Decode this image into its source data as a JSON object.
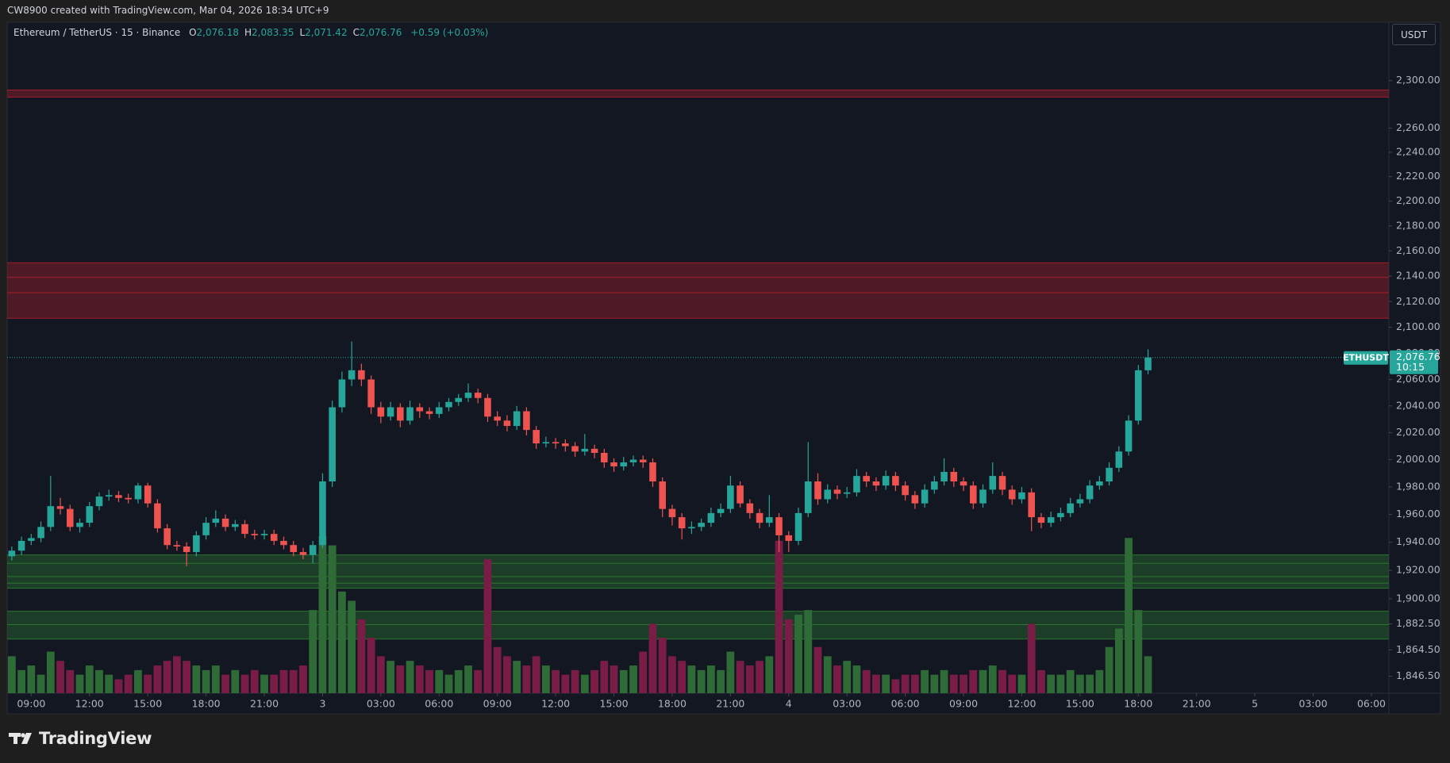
{
  "header": {
    "credit": "CW8900 created with TradingView.com, Mar 04, 2026 18:34 UTC+9"
  },
  "legend": {
    "symbol": "Ethereum / TetherUS · 15 · Binance",
    "ohlc": [
      {
        "key": "O",
        "value": "2,076.18"
      },
      {
        "key": "H",
        "value": "2,083.35"
      },
      {
        "key": "L",
        "value": "2,071.42"
      },
      {
        "key": "C",
        "value": "2,076.76"
      }
    ],
    "change": "+0.59 (+0.03%)"
  },
  "currency_button": "USDT",
  "footer": {
    "brand": "TradingView"
  },
  "chart_data": {
    "type": "candlestick",
    "log": true,
    "grid": false,
    "up_color": "#26a69a",
    "down_color": "#ef5350",
    "volume_up_color": "#2f6b36",
    "volume_down_color": "#7a1d46",
    "xlim": [
      7.76,
      78.9
    ],
    "xticks": [
      {
        "value": 9,
        "label": "09:00"
      },
      {
        "value": 12,
        "label": "12:00"
      },
      {
        "value": 15,
        "label": "15:00"
      },
      {
        "value": 18,
        "label": "18:00"
      },
      {
        "value": 21,
        "label": "21:00"
      },
      {
        "value": 24,
        "label": "3"
      },
      {
        "value": 27,
        "label": "03:00"
      },
      {
        "value": 30,
        "label": "06:00"
      },
      {
        "value": 33,
        "label": "09:00"
      },
      {
        "value": 36,
        "label": "12:00"
      },
      {
        "value": 39,
        "label": "15:00"
      },
      {
        "value": 42,
        "label": "18:00"
      },
      {
        "value": 45,
        "label": "21:00"
      },
      {
        "value": 48,
        "label": "4"
      },
      {
        "value": 51,
        "label": "03:00"
      },
      {
        "value": 54,
        "label": "06:00"
      },
      {
        "value": 57,
        "label": "09:00"
      },
      {
        "value": 60,
        "label": "12:00"
      },
      {
        "value": 63,
        "label": "15:00"
      },
      {
        "value": 66,
        "label": "18:00"
      },
      {
        "value": 69,
        "label": "21:00"
      },
      {
        "value": 72,
        "label": "5"
      },
      {
        "value": 75,
        "label": "03:00"
      },
      {
        "value": 78,
        "label": "06:00"
      }
    ],
    "ylim": [
      1835,
      2350
    ],
    "yticks": [
      {
        "value": 2300,
        "label": "2,300.00"
      },
      {
        "value": 2260,
        "label": "2,260.00"
      },
      {
        "value": 2240,
        "label": "2,240.00"
      },
      {
        "value": 2220,
        "label": "2,220.00"
      },
      {
        "value": 2200,
        "label": "2,200.00"
      },
      {
        "value": 2180,
        "label": "2,180.00"
      },
      {
        "value": 2160,
        "label": "2,160.00"
      },
      {
        "value": 2140,
        "label": "2,140.00"
      },
      {
        "value": 2120,
        "label": "2,120.00"
      },
      {
        "value": 2100,
        "label": "2,100.00"
      },
      {
        "value": 2080,
        "label": "2,080.00"
      },
      {
        "value": 2060,
        "label": "2,060.00"
      },
      {
        "value": 2040,
        "label": "2,040.00"
      },
      {
        "value": 2020,
        "label": "2,020.00"
      },
      {
        "value": 2000,
        "label": "2,000.00"
      },
      {
        "value": 1980,
        "label": "1,980.00"
      },
      {
        "value": 1960,
        "label": "1,960.00"
      },
      {
        "value": 1940,
        "label": "1,940.00"
      },
      {
        "value": 1920,
        "label": "1,920.00"
      },
      {
        "value": 1900,
        "label": "1,900.00"
      },
      {
        "value": 1882.5,
        "label": "1,882.50"
      },
      {
        "value": 1864.5,
        "label": "1,864.50"
      },
      {
        "value": 1846.5,
        "label": "1,846.50"
      }
    ],
    "zones": [
      {
        "from": 2286,
        "to": 2292,
        "color": "#b0202c",
        "lines": [
          2286,
          2292
        ]
      },
      {
        "from": 2107,
        "to": 2150.6,
        "color": "#b0202c",
        "lines": [
          2150.6,
          2139,
          2127,
          2107
        ]
      },
      {
        "from": 1907.4,
        "to": 1931,
        "color": "#2e7d32",
        "lines": [
          1931,
          1925,
          1915.6,
          1911,
          1907.4
        ]
      },
      {
        "from": 1872,
        "to": 1891.3,
        "color": "#2e7d32",
        "lines": [
          1891.3,
          1882,
          1872
        ]
      }
    ],
    "last_price": {
      "value": 2076.76,
      "label": "2,076.76",
      "symbol": "ETHUSDT",
      "countdown": "10:15"
    },
    "x": [
      8,
      8.5,
      9,
      9.5,
      10,
      10.5,
      11,
      11.5,
      12,
      12.5,
      13,
      13.5,
      14,
      14.5,
      15,
      15.5,
      16,
      16.5,
      17,
      17.5,
      18,
      18.5,
      19,
      19.5,
      20,
      20.5,
      21,
      21.5,
      22,
      22.5,
      23,
      23.5,
      24,
      24.5,
      25,
      25.5,
      26,
      26.5,
      27,
      27.5,
      28,
      28.5,
      29,
      29.5,
      30,
      30.5,
      31,
      31.5,
      32,
      32.5,
      33,
      33.5,
      34,
      34.5,
      35,
      35.5,
      36,
      36.5,
      37,
      37.5,
      38,
      38.5,
      39,
      39.5,
      40,
      40.5,
      41,
      41.5,
      42,
      42.5,
      43,
      43.5,
      44,
      44.5,
      45,
      45.5,
      46,
      46.5,
      47,
      47.5,
      48,
      48.5,
      49,
      49.5,
      50,
      50.5,
      51,
      51.5,
      52,
      52.5,
      53,
      53.5,
      54,
      54.5,
      55,
      55.5,
      56,
      56.5,
      57,
      57.5,
      58,
      58.5,
      59,
      59.5,
      60,
      60.5,
      61,
      61.5,
      62,
      62.5,
      63,
      63.5,
      64,
      64.5,
      65,
      65.5,
      66,
      66.5
    ],
    "candles": [
      [
        1930,
        1937,
        1927,
        1934
      ],
      [
        1934,
        1944,
        1931,
        1941
      ],
      [
        1941,
        1946,
        1938,
        1943
      ],
      [
        1943,
        1955,
        1940,
        1951
      ],
      [
        1951,
        1988,
        1948,
        1966
      ],
      [
        1966,
        1972,
        1960,
        1964
      ],
      [
        1964,
        1967,
        1948,
        1951
      ],
      [
        1951,
        1957,
        1947,
        1954
      ],
      [
        1954,
        1969,
        1951,
        1966
      ],
      [
        1966,
        1976,
        1963,
        1973
      ],
      [
        1973,
        1978,
        1970,
        1974
      ],
      [
        1974,
        1977,
        1969,
        1972
      ],
      [
        1972,
        1975,
        1968,
        1971
      ],
      [
        1971,
        1983,
        1968,
        1981
      ],
      [
        1981,
        1983,
        1965,
        1968
      ],
      [
        1968,
        1971,
        1947,
        1950
      ],
      [
        1950,
        1953,
        1935,
        1938
      ],
      [
        1938,
        1941,
        1934,
        1937
      ],
      [
        1937,
        1940,
        1923,
        1933
      ],
      [
        1933,
        1948,
        1930,
        1945
      ],
      [
        1945,
        1958,
        1942,
        1954
      ],
      [
        1954,
        1963,
        1951,
        1957
      ],
      [
        1957,
        1960,
        1948,
        1951
      ],
      [
        1951,
        1956,
        1948,
        1953
      ],
      [
        1953,
        1956,
        1943,
        1946
      ],
      [
        1946,
        1949,
        1942,
        1945
      ],
      [
        1945,
        1949,
        1942,
        1946
      ],
      [
        1946,
        1949,
        1938,
        1941
      ],
      [
        1941,
        1944,
        1935,
        1938
      ],
      [
        1938,
        1941,
        1930,
        1933
      ],
      [
        1933,
        1936,
        1928,
        1931
      ],
      [
        1931,
        1941,
        1925,
        1938
      ],
      [
        1938,
        1990,
        1936,
        1984
      ],
      [
        1984,
        2044,
        1980,
        2039
      ],
      [
        2039,
        2066,
        2035,
        2060
      ],
      [
        2060,
        2089,
        2055,
        2067
      ],
      [
        2067,
        2072,
        2055,
        2060
      ],
      [
        2060,
        2063,
        2034,
        2039
      ],
      [
        2039,
        2043,
        2027,
        2032
      ],
      [
        2032,
        2043,
        2029,
        2039
      ],
      [
        2039,
        2042,
        2024,
        2029
      ],
      [
        2029,
        2044,
        2026,
        2039
      ],
      [
        2039,
        2042,
        2031,
        2036
      ],
      [
        2036,
        2039,
        2030,
        2034
      ],
      [
        2034,
        2043,
        2031,
        2039
      ],
      [
        2039,
        2046,
        2036,
        2043
      ],
      [
        2043,
        2049,
        2040,
        2046
      ],
      [
        2046,
        2057,
        2043,
        2050
      ],
      [
        2050,
        2053,
        2042,
        2046
      ],
      [
        2046,
        2049,
        2028,
        2032
      ],
      [
        2032,
        2036,
        2025,
        2029
      ],
      [
        2029,
        2033,
        2021,
        2025
      ],
      [
        2025,
        2040,
        2022,
        2036
      ],
      [
        2036,
        2039,
        2018,
        2022
      ],
      [
        2022,
        2025,
        2008,
        2012
      ],
      [
        2012,
        2017,
        2009,
        2013
      ],
      [
        2013,
        2016,
        2008,
        2012
      ],
      [
        2012,
        2015,
        2006,
        2010
      ],
      [
        2010,
        2013,
        2002,
        2006
      ],
      [
        2006,
        2019,
        2003,
        2008
      ],
      [
        2008,
        2011,
        2001,
        2005
      ],
      [
        2005,
        2008,
        1994,
        1998
      ],
      [
        1998,
        2001,
        1991,
        1995
      ],
      [
        1995,
        2002,
        1992,
        1998
      ],
      [
        1998,
        2003,
        1995,
        2000
      ],
      [
        2000,
        2003,
        1994,
        1998
      ],
      [
        1998,
        2001,
        1980,
        1984
      ],
      [
        1984,
        1987,
        1958,
        1964
      ],
      [
        1964,
        1967,
        1952,
        1958
      ],
      [
        1958,
        1961,
        1942,
        1950
      ],
      [
        1950,
        1955,
        1946,
        1951
      ],
      [
        1951,
        1957,
        1948,
        1954
      ],
      [
        1954,
        1965,
        1951,
        1961
      ],
      [
        1961,
        1968,
        1958,
        1964
      ],
      [
        1964,
        1988,
        1961,
        1981
      ],
      [
        1981,
        1984,
        1965,
        1968
      ],
      [
        1968,
        1971,
        1957,
        1961
      ],
      [
        1961,
        1964,
        1950,
        1954
      ],
      [
        1954,
        1974,
        1951,
        1958
      ],
      [
        1958,
        1961,
        1933,
        1945
      ],
      [
        1945,
        1948,
        1933,
        1941
      ],
      [
        1941,
        1965,
        1938,
        1961
      ],
      [
        1961,
        2013,
        1958,
        1984
      ],
      [
        1984,
        1990,
        1967,
        1971
      ],
      [
        1971,
        1982,
        1968,
        1978
      ],
      [
        1978,
        1981,
        1971,
        1975
      ],
      [
        1975,
        1980,
        1972,
        1976
      ],
      [
        1976,
        1993,
        1973,
        1988
      ],
      [
        1988,
        1991,
        1980,
        1984
      ],
      [
        1984,
        1987,
        1977,
        1981
      ],
      [
        1981,
        1992,
        1978,
        1988
      ],
      [
        1988,
        1991,
        1977,
        1981
      ],
      [
        1981,
        1984,
        1970,
        1974
      ],
      [
        1974,
        1977,
        1964,
        1968
      ],
      [
        1968,
        1982,
        1965,
        1978
      ],
      [
        1978,
        1988,
        1975,
        1984
      ],
      [
        1984,
        2001,
        1981,
        1991
      ],
      [
        1991,
        1994,
        1980,
        1984
      ],
      [
        1984,
        1987,
        1977,
        1981
      ],
      [
        1981,
        1984,
        1964,
        1968
      ],
      [
        1968,
        1982,
        1965,
        1978
      ],
      [
        1978,
        1998,
        1975,
        1988
      ],
      [
        1988,
        1991,
        1974,
        1978
      ],
      [
        1978,
        1981,
        1967,
        1971
      ],
      [
        1971,
        1980,
        1968,
        1976
      ],
      [
        1976,
        1979,
        1948,
        1958
      ],
      [
        1958,
        1961,
        1950,
        1954
      ],
      [
        1954,
        1962,
        1951,
        1958
      ],
      [
        1958,
        1965,
        1955,
        1961
      ],
      [
        1961,
        1972,
        1958,
        1968
      ],
      [
        1968,
        1975,
        1965,
        1971
      ],
      [
        1971,
        1985,
        1968,
        1981
      ],
      [
        1981,
        1988,
        1978,
        1984
      ],
      [
        1984,
        1998,
        1981,
        1994
      ],
      [
        1994,
        2010,
        1991,
        2006
      ],
      [
        2006,
        2033,
        2003,
        2029
      ],
      [
        2029,
        2071,
        2026,
        2067
      ],
      [
        2067,
        2083,
        2064,
        2076.76
      ]
    ],
    "vlim": [
      0,
      200
    ],
    "volume": [
      40,
      25,
      30,
      20,
      45,
      35,
      25,
      20,
      30,
      25,
      20,
      15,
      20,
      25,
      20,
      30,
      35,
      40,
      35,
      30,
      25,
      30,
      20,
      25,
      20,
      25,
      20,
      20,
      25,
      25,
      30,
      90,
      170,
      160,
      110,
      100,
      80,
      60,
      40,
      35,
      30,
      35,
      30,
      25,
      25,
      20,
      25,
      30,
      25,
      145,
      50,
      40,
      35,
      30,
      40,
      30,
      25,
      20,
      25,
      20,
      25,
      35,
      30,
      25,
      30,
      45,
      75,
      60,
      40,
      35,
      30,
      25,
      30,
      25,
      45,
      35,
      30,
      35,
      40,
      165,
      80,
      85,
      90,
      50,
      40,
      30,
      35,
      30,
      25,
      20,
      20,
      15,
      20,
      20,
      25,
      20,
      25,
      20,
      20,
      25,
      25,
      30,
      25,
      20,
      20,
      75,
      25,
      20,
      20,
      25,
      20,
      20,
      25,
      50,
      70,
      168,
      90,
      40
    ]
  }
}
